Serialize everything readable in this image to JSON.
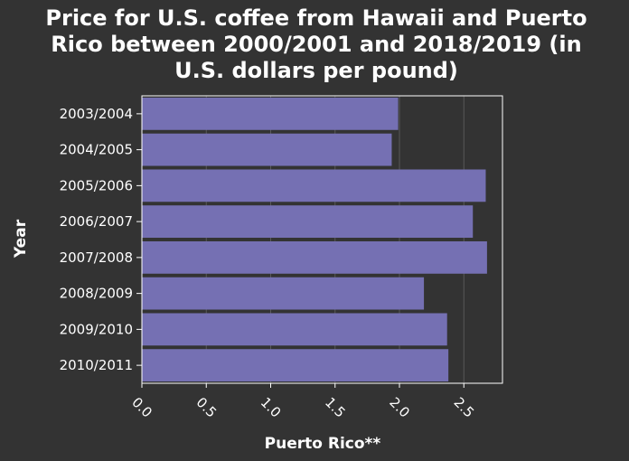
{
  "chart_data": {
    "type": "bar",
    "orientation": "horizontal",
    "title": "Price for U.S. coffee from Hawaii and Puerto Rico between 2000/2001 and 2018/2019 (in U.S. dollars per pound)",
    "title_lines": [
      "Price for U.S. coffee from Hawaii and Puerto",
      "Rico between 2000/2001 and 2018/2019 (in",
      "U.S. dollars per pound)"
    ],
    "xlabel": "Puerto Rico**",
    "ylabel": "Year",
    "categories": [
      "2003/2004",
      "2004/2005",
      "2005/2006",
      "2006/2007",
      "2007/2008",
      "2008/2009",
      "2009/2010",
      "2010/2011"
    ],
    "values": [
      1.99,
      1.94,
      2.67,
      2.57,
      2.68,
      2.19,
      2.37,
      2.38
    ],
    "xlim": [
      0,
      2.8
    ],
    "xticks": [
      "0.0",
      "0.5",
      "1.0",
      "1.5",
      "2.0",
      "2.5"
    ],
    "grid": true,
    "colors": {
      "bar": "#7570b3",
      "background": "#333333",
      "text": "#ffffff",
      "grid": "#595959"
    }
  }
}
